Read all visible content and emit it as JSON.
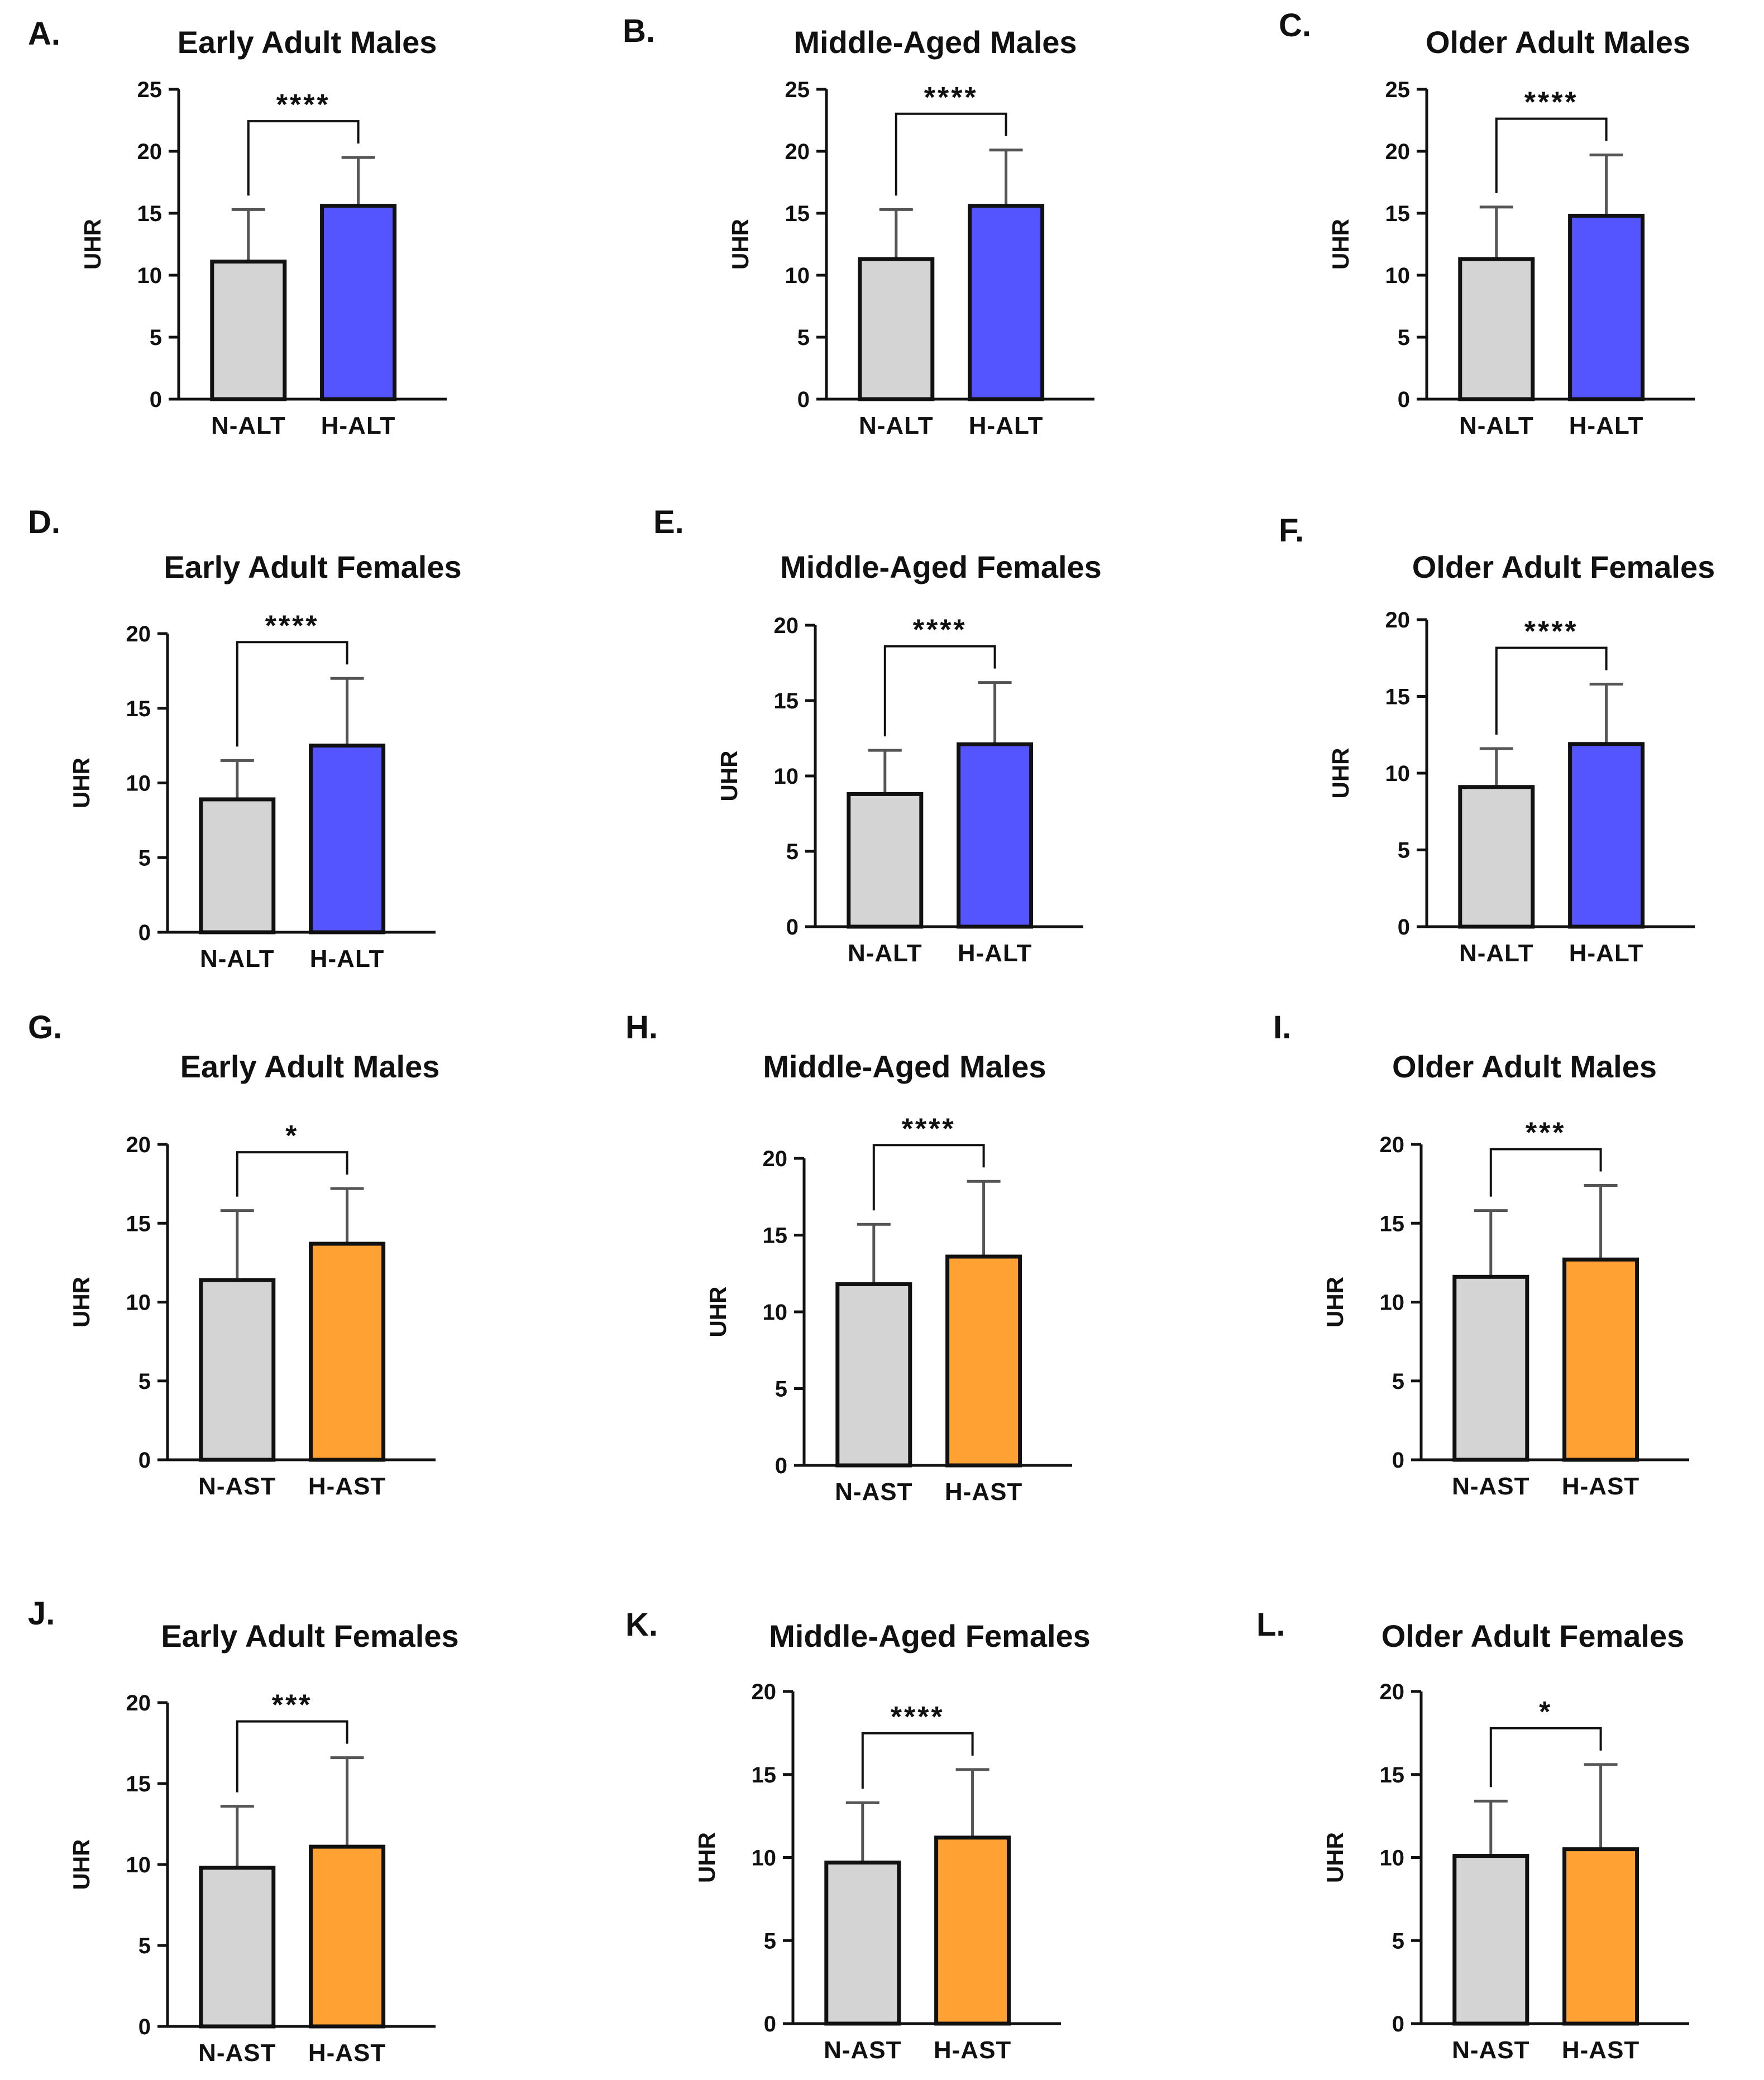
{
  "figure": {
    "colors": {
      "control": "#d4d4d4",
      "alt": "#5555ff",
      "ast": "#ffa133",
      "ink": "#111111",
      "error": "#555555"
    }
  },
  "chart_data": [
    {
      "type": "bar",
      "panel": "A.",
      "title": "Early Adult Males",
      "ylabel": "UHR",
      "categories": [
        "N-ALT",
        "H-ALT"
      ],
      "values": [
        11.1,
        15.6
      ],
      "error": [
        4.2,
        3.9
      ],
      "ylim": [
        0,
        25
      ],
      "yticks": [
        "0",
        "5",
        "10",
        "15",
        "20",
        "25"
      ],
      "significance": "****",
      "fill": "alt"
    },
    {
      "type": "bar",
      "panel": "B.",
      "title": "Middle-Aged Males",
      "ylabel": "UHR",
      "categories": [
        "N-ALT",
        "H-ALT"
      ],
      "values": [
        11.3,
        15.6
      ],
      "error": [
        4.0,
        4.5
      ],
      "ylim": [
        0,
        25
      ],
      "yticks": [
        "0",
        "5",
        "10",
        "15",
        "20",
        "25"
      ],
      "significance": "****",
      "fill": "alt"
    },
    {
      "type": "bar",
      "panel": "C.",
      "title": "Older Adult Males",
      "ylabel": "UHR",
      "categories": [
        "N-ALT",
        "H-ALT"
      ],
      "values": [
        11.3,
        14.8
      ],
      "error": [
        4.2,
        4.9
      ],
      "ylim": [
        0,
        25
      ],
      "yticks": [
        "0",
        "5",
        "10",
        "15",
        "20",
        "25"
      ],
      "significance": "****",
      "fill": "alt"
    },
    {
      "type": "bar",
      "panel": "D.",
      "title": "Early Adult Females",
      "ylabel": "UHR",
      "categories": [
        "N-ALT",
        "H-ALT"
      ],
      "values": [
        8.9,
        12.5
      ],
      "error": [
        2.6,
        4.5
      ],
      "ylim": [
        0,
        20
      ],
      "yticks": [
        "0",
        "5",
        "10",
        "15",
        "20"
      ],
      "significance": "****",
      "fill": "alt"
    },
    {
      "type": "bar",
      "panel": "E.",
      "title": "Middle-Aged Females",
      "ylabel": "UHR",
      "categories": [
        "N-ALT",
        "H-ALT"
      ],
      "values": [
        8.8,
        12.1
      ],
      "error": [
        2.9,
        4.1
      ],
      "ylim": [
        0,
        20
      ],
      "yticks": [
        "0",
        "5",
        "10",
        "15",
        "20"
      ],
      "significance": "****",
      "fill": "alt"
    },
    {
      "type": "bar",
      "panel": "F.",
      "title": "Older Adult Females",
      "ylabel": "UHR",
      "categories": [
        "N-ALT",
        "H-ALT"
      ],
      "values": [
        9.1,
        11.9
      ],
      "error": [
        2.5,
        3.9
      ],
      "ylim": [
        0,
        20
      ],
      "yticks": [
        "0",
        "5",
        "10",
        "15",
        "20"
      ],
      "significance": "****",
      "fill": "alt"
    },
    {
      "type": "bar",
      "panel": "G.",
      "title": "Early Adult Males",
      "ylabel": "UHR",
      "categories": [
        "N-AST",
        "H-AST"
      ],
      "values": [
        11.4,
        13.7
      ],
      "error": [
        4.4,
        3.5
      ],
      "ylim": [
        0,
        20
      ],
      "yticks": [
        "0",
        "5",
        "10",
        "15",
        "20"
      ],
      "significance": "*",
      "fill": "ast"
    },
    {
      "type": "bar",
      "panel": "H.",
      "title": "Middle-Aged Males",
      "ylabel": "UHR",
      "categories": [
        "N-AST",
        "H-AST"
      ],
      "values": [
        11.8,
        13.6
      ],
      "error": [
        3.9,
        4.9
      ],
      "ylim": [
        0,
        20
      ],
      "yticks": [
        "0",
        "5",
        "10",
        "15",
        "20"
      ],
      "significance": "****",
      "fill": "ast"
    },
    {
      "type": "bar",
      "panel": "I.",
      "title": "Older Adult Males",
      "ylabel": "UHR",
      "categories": [
        "N-AST",
        "H-AST"
      ],
      "values": [
        11.6,
        12.7
      ],
      "error": [
        4.2,
        4.7
      ],
      "ylim": [
        0,
        20
      ],
      "yticks": [
        "0",
        "5",
        "10",
        "15",
        "20"
      ],
      "significance": "***",
      "fill": "ast"
    },
    {
      "type": "bar",
      "panel": "J.",
      "title": "Early Adult Females",
      "ylabel": "UHR",
      "categories": [
        "N-AST",
        "H-AST"
      ],
      "values": [
        9.8,
        11.1
      ],
      "error": [
        3.8,
        5.5
      ],
      "ylim": [
        0,
        20
      ],
      "yticks": [
        "0",
        "5",
        "10",
        "15",
        "20"
      ],
      "significance": "***",
      "fill": "ast"
    },
    {
      "type": "bar",
      "panel": "K.",
      "title": "Middle-Aged Females",
      "ylabel": "UHR",
      "categories": [
        "N-AST",
        "H-AST"
      ],
      "values": [
        9.7,
        11.2
      ],
      "error": [
        3.6,
        4.1
      ],
      "ylim": [
        0,
        20
      ],
      "yticks": [
        "0",
        "5",
        "10",
        "15",
        "20"
      ],
      "significance": "****",
      "fill": "ast"
    },
    {
      "type": "bar",
      "panel": "L.",
      "title": "Older Adult Females",
      "ylabel": "UHR",
      "categories": [
        "N-AST",
        "H-AST"
      ],
      "values": [
        10.1,
        10.5
      ],
      "error": [
        3.3,
        5.1
      ],
      "ylim": [
        0,
        20
      ],
      "yticks": [
        "0",
        "5",
        "10",
        "15",
        "20"
      ],
      "significance": "*",
      "fill": "ast"
    }
  ]
}
